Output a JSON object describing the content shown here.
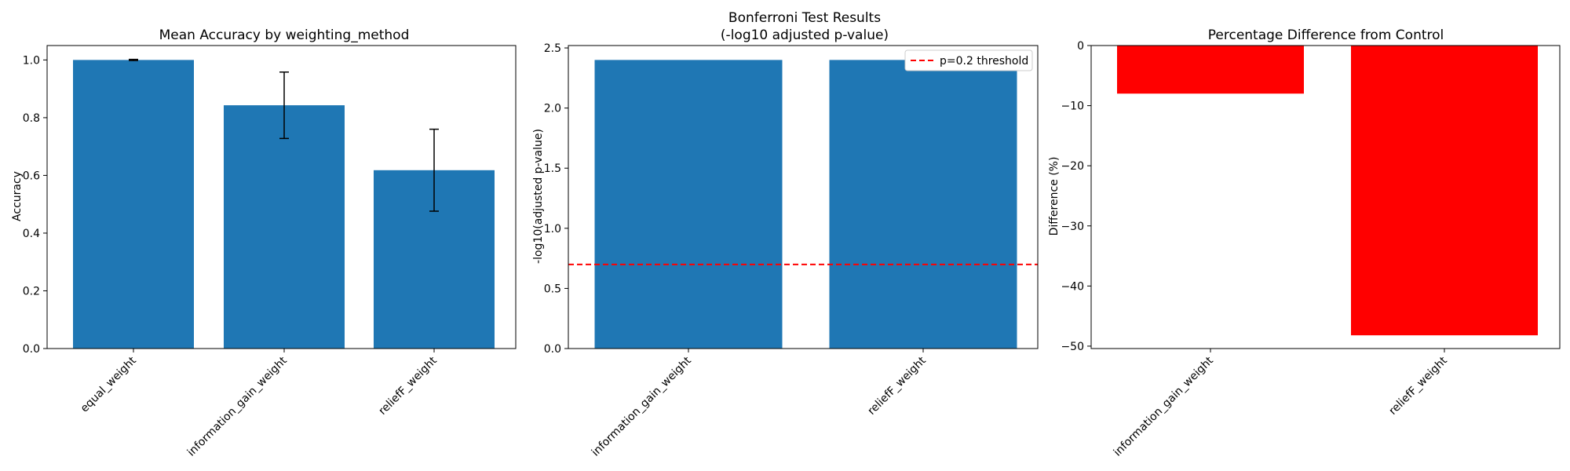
{
  "chart_data": [
    {
      "type": "bar",
      "title": "Mean Accuracy by weighting_method",
      "xlabel": "",
      "ylabel": "Accuracy",
      "categories": [
        "equal_weight",
        "information_gain_weight",
        "reliefF_weight"
      ],
      "values": [
        1.0,
        0.843,
        0.618
      ],
      "error_bars": [
        0.002,
        0.115,
        0.142
      ],
      "ylim": [
        0,
        1.05
      ],
      "yticks": [
        "0.0",
        "0.2",
        "0.4",
        "0.6",
        "0.8",
        "1.0"
      ],
      "bar_color": "#1f77b4",
      "grid": false
    },
    {
      "type": "bar",
      "title": "Bonferroni Test Results",
      "subtitle": "(-log10 adjusted p-value)",
      "xlabel": "",
      "ylabel": "-log10(adjusted p-value)",
      "categories": [
        "information_gain_weight",
        "reliefF_weight"
      ],
      "values": [
        2.4,
        2.4
      ],
      "ylim": [
        0,
        2.52
      ],
      "yticks": [
        "0.0",
        "0.5",
        "1.0",
        "1.5",
        "2.0",
        "2.5"
      ],
      "threshold": {
        "value": 0.699,
        "label": "p=0.2 threshold",
        "color": "#ff0000"
      },
      "legend_position": "top-right",
      "bar_color": "#1f77b4",
      "grid": false
    },
    {
      "type": "bar",
      "title": "Percentage Difference from Control",
      "xlabel": "",
      "ylabel": "Difference (%)",
      "categories": [
        "information_gain_weight",
        "reliefF_weight"
      ],
      "values": [
        -8.0,
        -48.2
      ],
      "ylim": [
        -50.4,
        0
      ],
      "yticks": [
        "−50",
        "−40",
        "−30",
        "−20",
        "−10",
        "0"
      ],
      "bar_color": "#ff0000",
      "grid": false
    }
  ]
}
